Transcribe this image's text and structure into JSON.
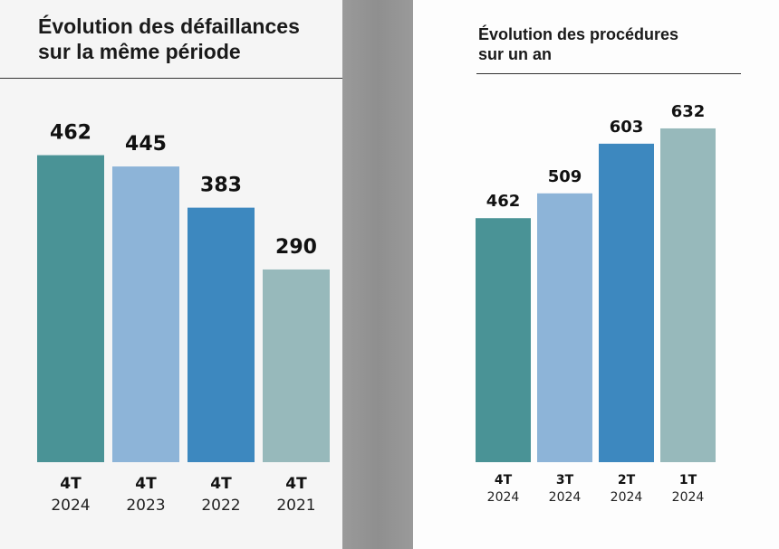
{
  "chart_data": [
    {
      "type": "bar",
      "title_lines": [
        "Évolution des défaillances",
        "sur la même période"
      ],
      "categories": [
        {
          "quarter": "4T",
          "year": "2024"
        },
        {
          "quarter": "4T",
          "year": "2023"
        },
        {
          "quarter": "4T",
          "year": "2022"
        },
        {
          "quarter": "4T",
          "year": "2021"
        }
      ],
      "values": [
        462,
        445,
        383,
        290
      ],
      "colors": [
        "#4a9396",
        "#8db4d8",
        "#3d88bf",
        "#97b9bb"
      ],
      "ylim": [
        0,
        490
      ]
    },
    {
      "type": "bar",
      "title_lines": [
        "Évolution des procédures",
        "sur un an"
      ],
      "categories": [
        {
          "quarter": "4T",
          "year": "2024"
        },
        {
          "quarter": "3T",
          "year": "2024"
        },
        {
          "quarter": "2T",
          "year": "2024"
        },
        {
          "quarter": "1T",
          "year": "2024"
        }
      ],
      "values": [
        462,
        509,
        603,
        632
      ],
      "colors": [
        "#4a9396",
        "#8db4d8",
        "#3d88bf",
        "#97b9bb"
      ],
      "ylim": [
        0,
        685
      ]
    }
  ]
}
